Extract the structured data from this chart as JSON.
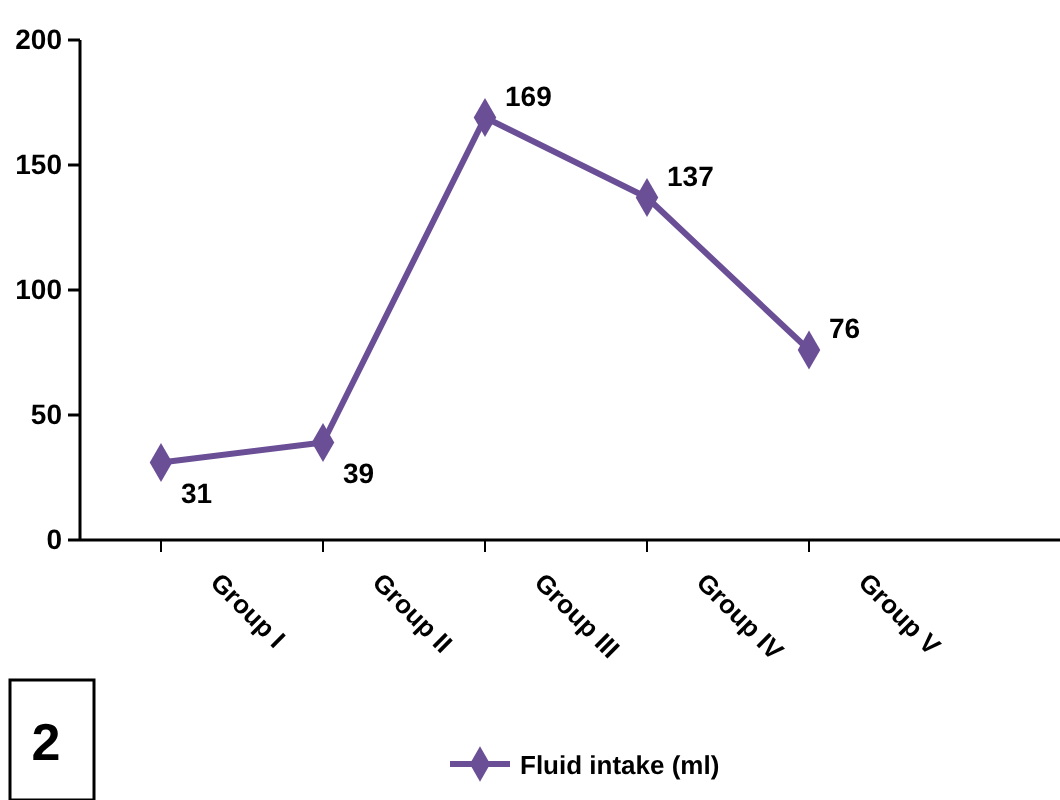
{
  "chart_data": {
    "type": "line",
    "categories": [
      "Group I",
      "Group II",
      "Group III",
      "Group IV",
      "Group V"
    ],
    "series": [
      {
        "name": "Fluid intake (ml)",
        "color": "#6b4f96",
        "values": [
          31,
          39,
          169,
          137,
          76
        ]
      }
    ],
    "ylim": [
      0,
      200
    ],
    "yticks": [
      0,
      50,
      100,
      150,
      200
    ],
    "grid": false,
    "legend": "bottom",
    "marker": "diamond",
    "line_style": "solid",
    "data_labels": true,
    "annotations": [
      "2"
    ]
  }
}
